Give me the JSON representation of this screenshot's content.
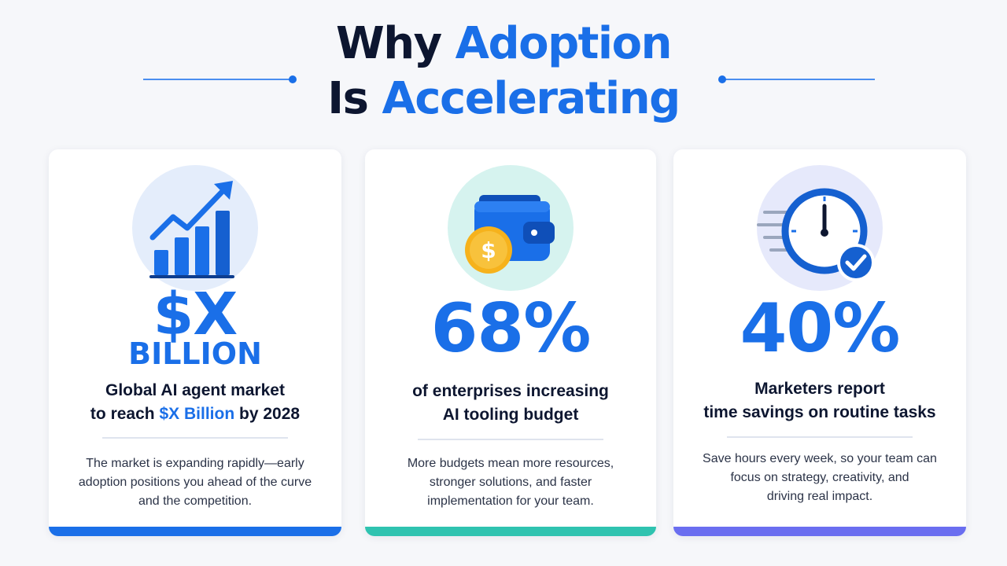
{
  "header": {
    "title_line1_dark": "Why",
    "title_line1_blue": "Adoption",
    "title_line2_dark": "Is",
    "title_line2_blue": "Accelerating"
  },
  "cards": [
    {
      "icon": "growth-chart-icon",
      "stat": "$X",
      "stat_sub": "BILLION",
      "headline_line1": "Global AI agent market",
      "headline_line2_pre": "to reach",
      "headline_line2_highlight": "$X Billion",
      "headline_line2_post": "by 2028",
      "desc_line1": "The market is expanding rapidly—early",
      "desc_line2": "adoption positions you ahead of the curve",
      "desc_line3": "and the competition."
    },
    {
      "icon": "wallet-dollar-icon",
      "stat": "68%",
      "headline_line1": "of enterprises increasing",
      "headline_line2": "AI tooling budget",
      "desc_line1": "More budgets mean more resources,",
      "desc_line2": "stronger solutions, and faster",
      "desc_line3": "implementation for your team."
    },
    {
      "icon": "clock-check-icon",
      "stat": "40%",
      "headline_line1": "Marketers report",
      "headline_line2": "time savings on routine tasks",
      "desc_line1": "Save hours every week, so your team can",
      "desc_line2": "focus on strategy, creativity, and",
      "desc_line3": "driving real impact."
    }
  ],
  "colors": {
    "accent_blue": "#1a6fe8",
    "dark_text": "#0d1630",
    "teal_bar": "#2fc3b0",
    "indigo_bar": "#6a6ef0",
    "coin_gold": "#f6b21c"
  }
}
